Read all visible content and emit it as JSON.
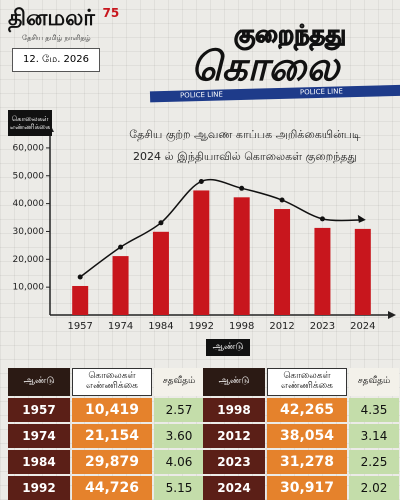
{
  "header": {
    "logo": "தினமலர்",
    "badge": "75",
    "tagline": "தேசிய தமிழ் நாளிதழ்",
    "date": "12. மே. 2026",
    "title_top": "குறைந்தது",
    "title_main": "கொலை",
    "tape": "POLICE LINE"
  },
  "chart_data": {
    "type": "bar",
    "subtitle": [
      "தேசிய குற்ற ஆவண காப்பக அறிக்கையின்படி",
      "2024 ல் இந்தியாவில் கொலைகள் குறைந்தது"
    ],
    "y_label": "கொலைகள் எண்ணிக்கை",
    "x_label": "ஆண்டு",
    "categories": [
      "1957",
      "1974",
      "1984",
      "1992",
      "1998",
      "2012",
      "2023",
      "2024"
    ],
    "values": [
      10419,
      21154,
      29879,
      44726,
      42265,
      38054,
      31278,
      30917
    ],
    "color": "#c8161d",
    "trend_color": "#111111",
    "ylim": [
      0,
      65000
    ],
    "yticks": [
      {
        "value": 10000,
        "label": "10,000"
      },
      {
        "value": 20000,
        "label": "20,000"
      },
      {
        "value": 30000,
        "label": "30,000"
      },
      {
        "value": 40000,
        "label": "40,000"
      },
      {
        "value": 50000,
        "label": "50,000"
      },
      {
        "value": 60000,
        "label": "60,000"
      }
    ],
    "grid": false
  },
  "table": {
    "header": [
      "ஆண்டு",
      "கொலைகள் எண்ணிக்கை",
      "சதவீதம்"
    ],
    "rows": [
      [
        "1957",
        "10,419",
        "2.57"
      ],
      [
        "1974",
        "21,154",
        "3.60"
      ],
      [
        "1984",
        "29,879",
        "4.06"
      ],
      [
        "1992",
        "44,726",
        "5.15"
      ],
      [
        "1998",
        "42,265",
        "4.35"
      ],
      [
        "2012",
        "38,054",
        "3.14"
      ],
      [
        "2023",
        "31,278",
        "2.25"
      ],
      [
        "2024",
        "30,917",
        "2.02"
      ]
    ]
  }
}
